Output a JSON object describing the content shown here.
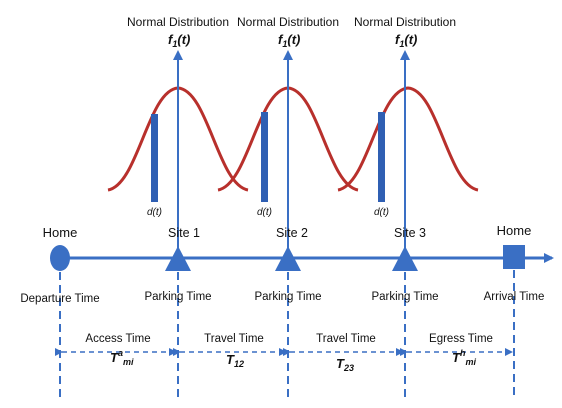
{
  "distributions": [
    {
      "title": "Normal Distribution",
      "func_base": "f",
      "func_sub": "1",
      "func_arg": "(t)",
      "marker": "d(t)"
    },
    {
      "title": "Normal Distribution",
      "func_base": "f",
      "func_sub": "1",
      "func_arg": "(t)",
      "marker": "d(t)"
    },
    {
      "title": "Normal Distribution",
      "func_base": "f",
      "func_sub": "1",
      "func_arg": "(t)",
      "marker": "d(t)"
    }
  ],
  "timeline": {
    "start_label": "Home",
    "end_label": "Home",
    "sites": [
      "Site 1",
      "Site 2",
      "Site 3"
    ]
  },
  "events": [
    "Departure Time",
    "Parking Time",
    "Parking Time",
    "Parking Time",
    "Arrival Time"
  ],
  "intervals": [
    {
      "label": "Access Time",
      "base": "T",
      "sup": "a",
      "sub": "mi"
    },
    {
      "label": "Travel Time",
      "base": "T",
      "sup": "",
      "sub": "12"
    },
    {
      "label": "Travel Time",
      "base": "T",
      "sup": "",
      "sub": "23"
    },
    {
      "label": "Egress Time",
      "base": "T",
      "sup": "h",
      "sub": "mi"
    }
  ],
  "colors": {
    "axis": "#3a6fc4",
    "curve": "#b8302c",
    "marker_bar": "#2f5fb3",
    "text": "#111111"
  }
}
